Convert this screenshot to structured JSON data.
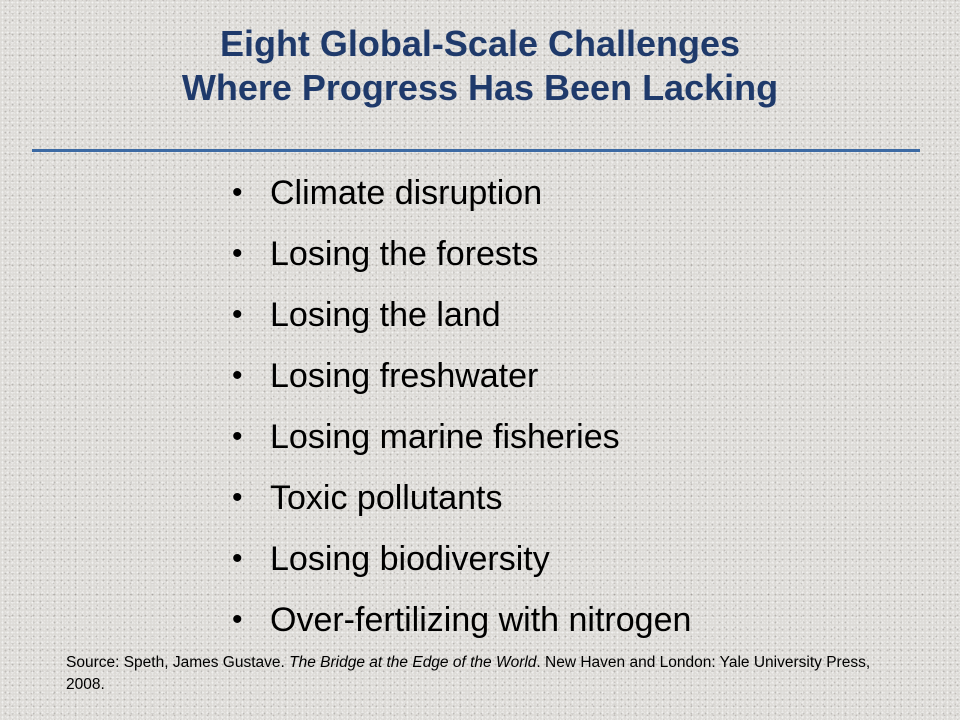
{
  "title": {
    "line1": "Eight Global-Scale Challenges",
    "line2": "Where Progress Has Been Lacking"
  },
  "bullets": [
    "Climate disruption",
    "Losing the forests",
    "Losing the land",
    "Losing freshwater",
    "Losing marine fisheries",
    "Toxic pollutants",
    "Losing biodiversity",
    "Over-fertilizing with nitrogen"
  ],
  "bullet_symbol": "•",
  "source": {
    "prefix": "Source: Speth, James Gustave. ",
    "book_title": "The Bridge at the Edge of the World",
    "suffix": ". New Haven and London: Yale University Press, 2008."
  },
  "colors": {
    "title": "#1f3a6b",
    "rule": "#3d6aa3",
    "background": "#dcdad6"
  }
}
